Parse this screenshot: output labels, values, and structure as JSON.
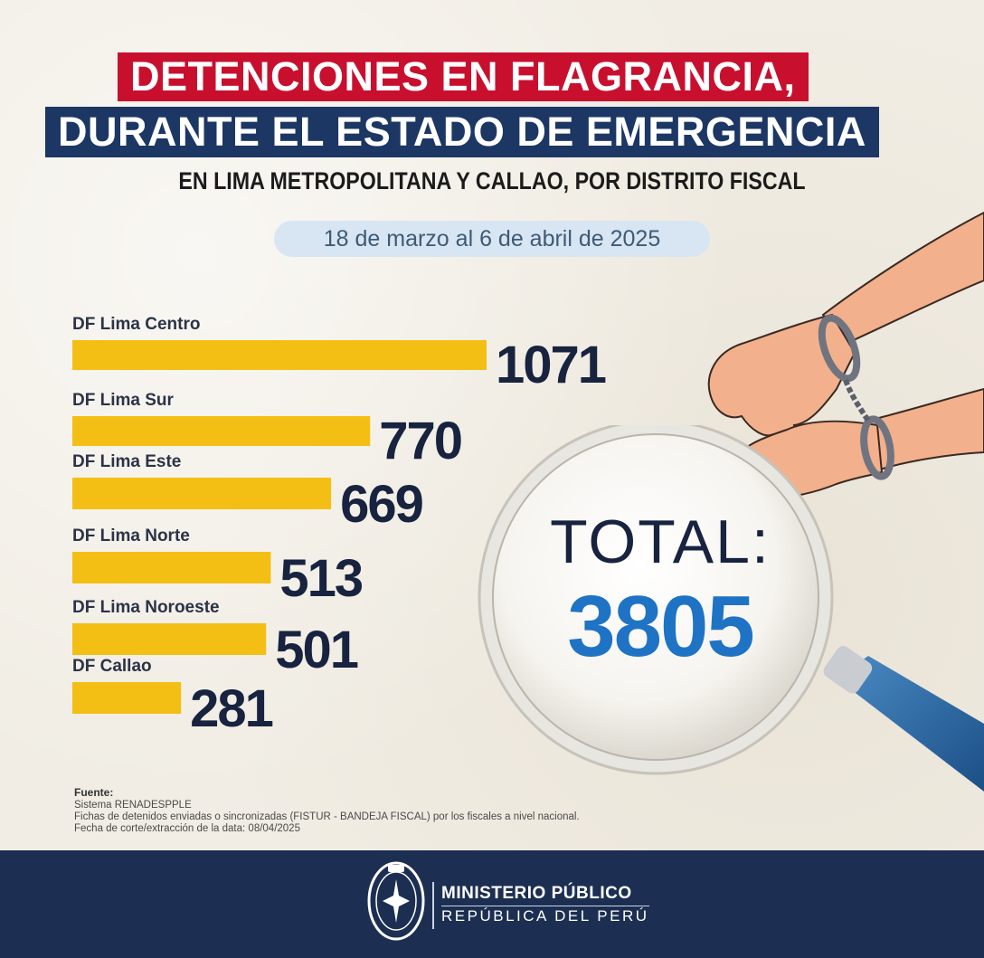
{
  "title": {
    "line1": "DETENCIONES EN FLAGRANCIA,",
    "line2": "DURANTE EL ESTADO DE EMERGENCIA",
    "subtitle": "EN LIMA METROPOLITANA Y CALLAO, POR DISTRITO FISCAL",
    "date_range": "18 de marzo al 6 de abril de 2025"
  },
  "chart_data": {
    "type": "bar",
    "orientation": "horizontal",
    "categories": [
      "DF Lima Centro",
      "DF Lima Sur",
      "DF Lima Este",
      "DF Lima Norte",
      "DF Lima Noroeste",
      "DF Callao"
    ],
    "values": [
      1071,
      770,
      669,
      513,
      501,
      281
    ],
    "bar_color": "#f4bf14",
    "value_color": "#17233f",
    "xlim": [
      0,
      1071
    ]
  },
  "total": {
    "label": "TOTAL:",
    "value": "3805"
  },
  "source": {
    "heading": "Fuente:",
    "lines": [
      "Sistema RENADESPPLE",
      "Fichas de detenidos enviadas o sincronizadas (FISTUR - BANDEJA FISCAL) por los fiscales a nivel nacional.",
      "Fecha de corte/extracción de la data: 08/04/2025"
    ]
  },
  "footer": {
    "institution": "MINISTERIO PÚBLICO",
    "country": "REPÚBLICA DEL PERÚ"
  },
  "colors": {
    "red": "#c8102e",
    "navy": "#1c3764",
    "footer_bg": "#1c2f52",
    "total_blue": "#1f73c4"
  }
}
